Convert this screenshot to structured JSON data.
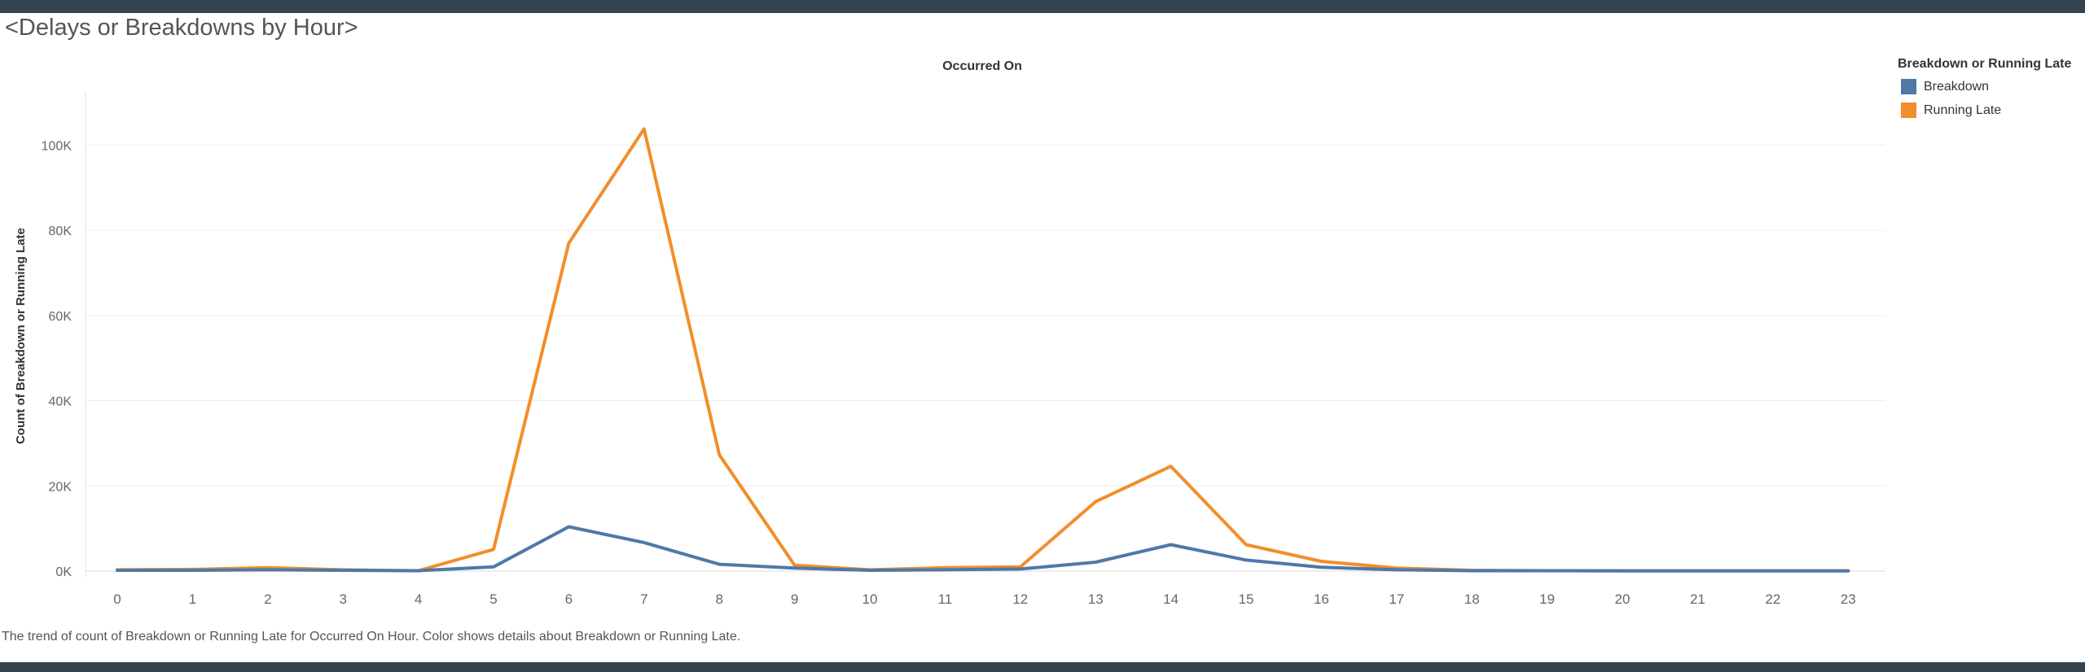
{
  "dashboard": {
    "title": "<Delays or Breakdowns by Hour>",
    "caption": "The trend of count of Breakdown or Running Late for Occurred On Hour.  Color shows details about Breakdown or Running Late."
  },
  "legend": {
    "title": "Breakdown or Running Late",
    "items": [
      {
        "label": "Breakdown",
        "color": "#4e79a7"
      },
      {
        "label": "Running Late",
        "color": "#f28e2b"
      }
    ]
  },
  "chart_data": {
    "type": "line",
    "title": "Occurred On",
    "xlabel": "",
    "ylabel": "Count of Breakdown or Running Late",
    "x": [
      0,
      1,
      2,
      3,
      4,
      5,
      6,
      7,
      8,
      9,
      10,
      11,
      12,
      13,
      14,
      15,
      16,
      17,
      18,
      19,
      20,
      21,
      22,
      23
    ],
    "ylim": [
      0,
      110000
    ],
    "yticks": [
      0,
      20000,
      40000,
      60000,
      80000,
      100000
    ],
    "ytick_labels": [
      "0K",
      "20K",
      "40K",
      "60K",
      "80K",
      "100K"
    ],
    "grid": true,
    "legend_position": "top-right",
    "series": [
      {
        "name": "Breakdown",
        "color": "#4e79a7",
        "values": [
          200,
          200,
          300,
          200,
          100,
          1000,
          10400,
          6700,
          1600,
          700,
          200,
          300,
          500,
          2100,
          6200,
          2600,
          900,
          300,
          100,
          100,
          50,
          50,
          50,
          50
        ]
      },
      {
        "name": "Running Late",
        "color": "#f28e2b",
        "values": [
          300,
          400,
          800,
          300,
          100,
          5100,
          77000,
          103800,
          27300,
          1400,
          300,
          800,
          1000,
          16300,
          24600,
          6200,
          2300,
          700,
          200,
          100,
          100,
          100,
          100,
          100
        ]
      }
    ]
  }
}
